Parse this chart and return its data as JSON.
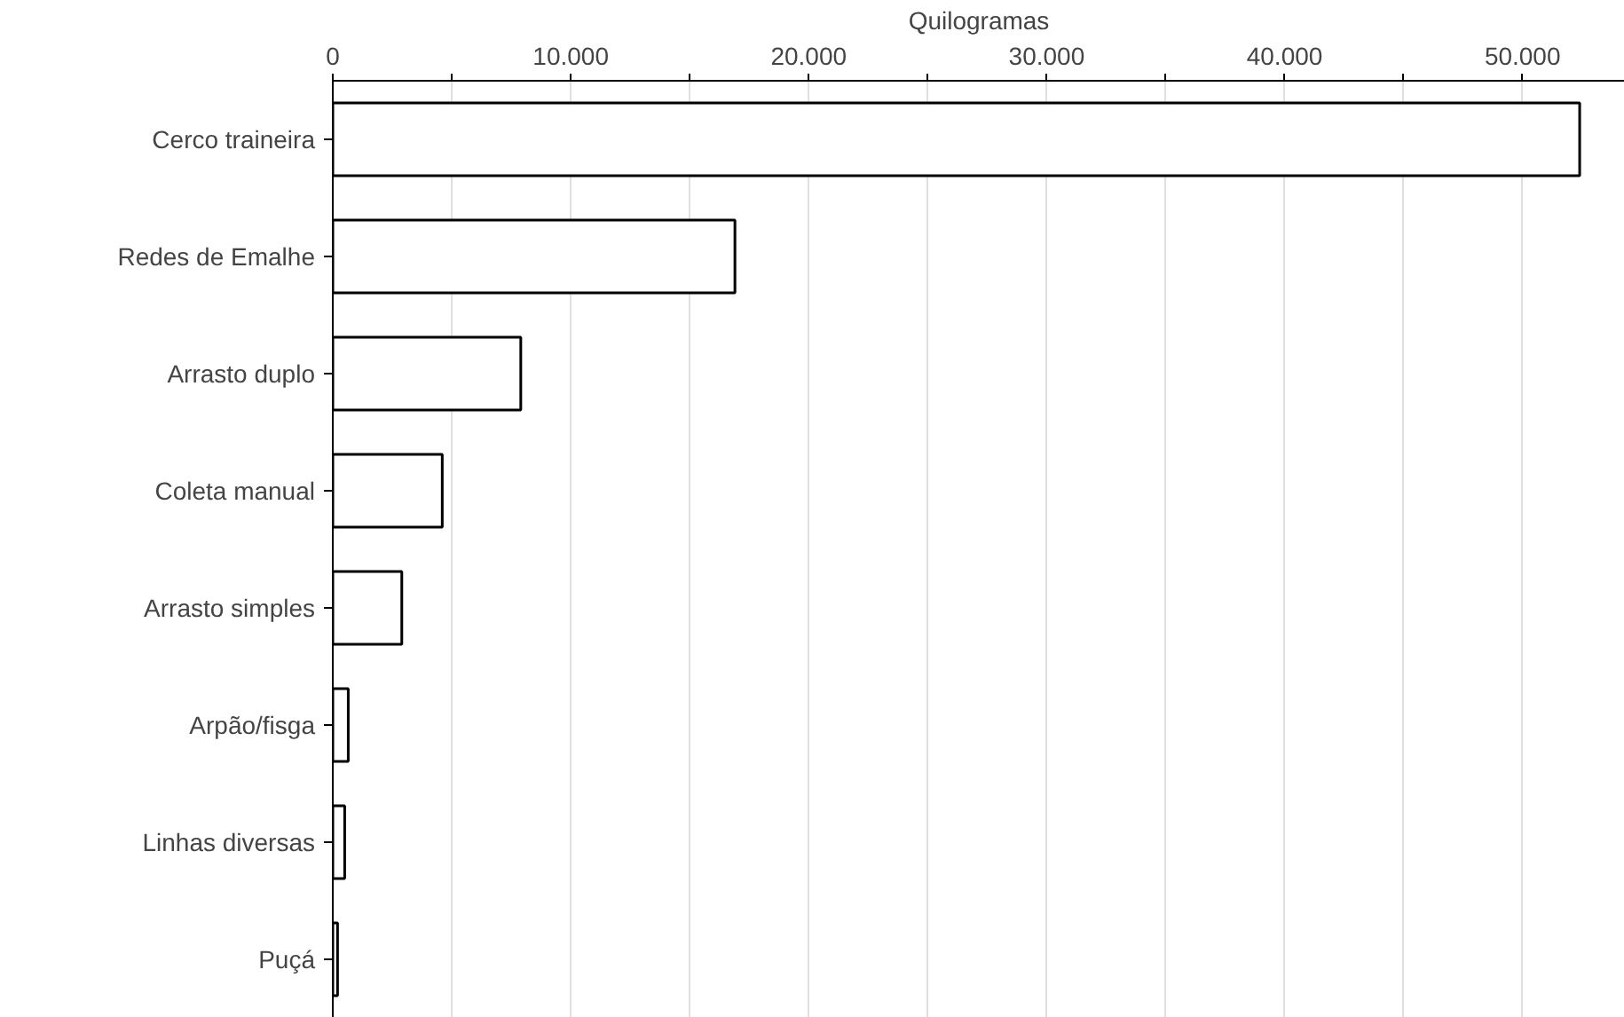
{
  "chart_data": {
    "type": "bar",
    "orientation": "horizontal",
    "xlabel": "Quilogramas",
    "categories": [
      "Cerco traineira",
      "Redes de Emalhe",
      "Arrasto duplo",
      "Coleta manual",
      "Arrasto simples",
      "Arpão/fisga",
      "Linhas diversas",
      "Puçá"
    ],
    "values": [
      52400,
      16900,
      7900,
      4600,
      2900,
      650,
      500,
      200
    ],
    "color": "#ffffff",
    "xlim": [
      0,
      54300
    ],
    "xticks": [
      0,
      {
        "value": 5000,
        "label": null
      },
      {
        "value": 10000,
        "label": "10.000"
      },
      {
        "value": 15000,
        "label": null
      },
      {
        "value": 20000,
        "label": "20.000"
      },
      {
        "value": 25000,
        "label": null
      },
      {
        "value": 30000,
        "label": "30.000"
      },
      {
        "value": 35000,
        "label": null
      },
      {
        "value": 40000,
        "label": "40.000"
      },
      {
        "value": 45000,
        "label": null
      },
      {
        "value": 50000,
        "label": "50.000"
      }
    ],
    "grid": "x"
  }
}
